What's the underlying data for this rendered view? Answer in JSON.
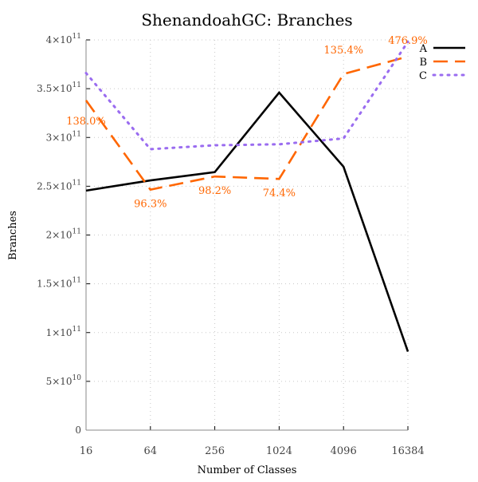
{
  "chart_data": {
    "type": "line",
    "title": "ShenandoahGC: Branches",
    "xlabel": "Number of Classes",
    "ylabel": "Branches",
    "x_scale": "log2",
    "categories": [
      "16",
      "64",
      "256",
      "1024",
      "4096",
      "16384"
    ],
    "ylim": [
      0,
      400000000000
    ],
    "y_ticks": [
      {
        "value": 0,
        "mantissa": "0",
        "exp": ""
      },
      {
        "value": 50000000000,
        "mantissa": "5×10",
        "exp": "10"
      },
      {
        "value": 100000000000,
        "mantissa": "1×10",
        "exp": "11"
      },
      {
        "value": 150000000000,
        "mantissa": "1.5×10",
        "exp": "11"
      },
      {
        "value": 200000000000,
        "mantissa": "2×10",
        "exp": "11"
      },
      {
        "value": 250000000000,
        "mantissa": "2.5×10",
        "exp": "11"
      },
      {
        "value": 300000000000,
        "mantissa": "3×10",
        "exp": "11"
      },
      {
        "value": 350000000000,
        "mantissa": "3.5×10",
        "exp": "11"
      },
      {
        "value": 400000000000,
        "mantissa": "4×10",
        "exp": "11"
      }
    ],
    "grid": true,
    "legend_position": "top-right",
    "series": [
      {
        "name": "A",
        "color": "#000000",
        "style": "solid",
        "values": [
          245500000000,
          256000000000,
          264500000000,
          346000000000,
          270000000000,
          80500000000
        ]
      },
      {
        "name": "B",
        "color": "#ff6600",
        "style": "dashed",
        "values": [
          338000000000,
          246500000000,
          260000000000,
          257500000000,
          365000000000,
          383000000000
        ]
      },
      {
        "name": "C",
        "color": "#9a6cf0",
        "style": "dotted",
        "values": [
          366000000000,
          288000000000,
          292000000000,
          293000000000,
          299000000000,
          398000000000
        ]
      }
    ],
    "annotations": [
      {
        "text": "138.0%",
        "series": "B",
        "index": 0
      },
      {
        "text": "96.3%",
        "series": "B",
        "index": 1
      },
      {
        "text": "98.2%",
        "series": "B",
        "index": 2
      },
      {
        "text": "74.4%",
        "series": "B",
        "index": 3
      },
      {
        "text": "135.4%",
        "series": "B",
        "index": 4
      },
      {
        "text": "476.9%",
        "series": "B",
        "index": 5
      }
    ]
  }
}
